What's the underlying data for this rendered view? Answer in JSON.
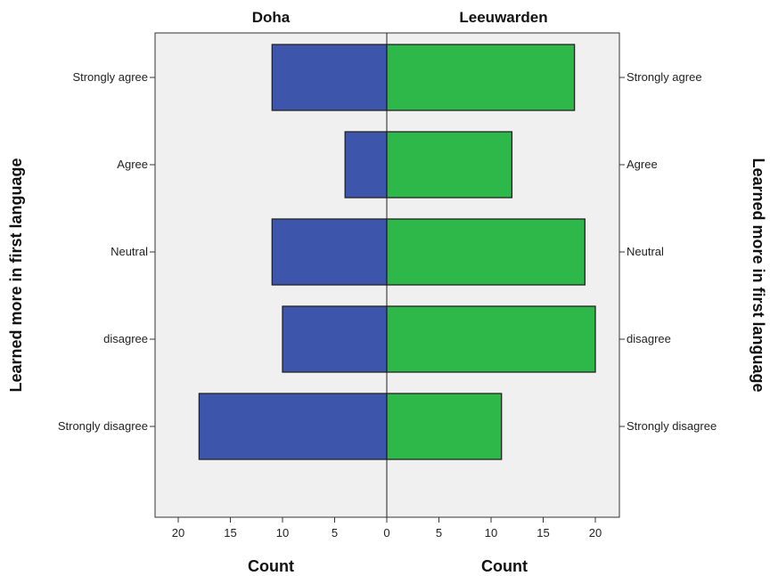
{
  "chart_data": {
    "type": "bar",
    "orientation": "horizontal",
    "layout": "population-pyramid",
    "categories": [
      "Strongly agree",
      "Agree",
      "Neutral",
      "disagree",
      "Strongly disagree"
    ],
    "panels": [
      {
        "title": "Doha",
        "direction": "left",
        "values": [
          11,
          4,
          11,
          10,
          18
        ],
        "color": "#3d55ab"
      },
      {
        "title": "Leeuwarden",
        "direction": "right",
        "values": [
          18,
          12,
          19,
          20,
          11
        ],
        "color": "#2fb84a"
      }
    ],
    "xlabel": "Count",
    "ylabel": "Learned more in first language",
    "xticks": [
      0,
      5,
      10,
      15,
      20
    ],
    "xlim": [
      0,
      22
    ],
    "plot_background": "#f0f0f0",
    "grid": false
  }
}
